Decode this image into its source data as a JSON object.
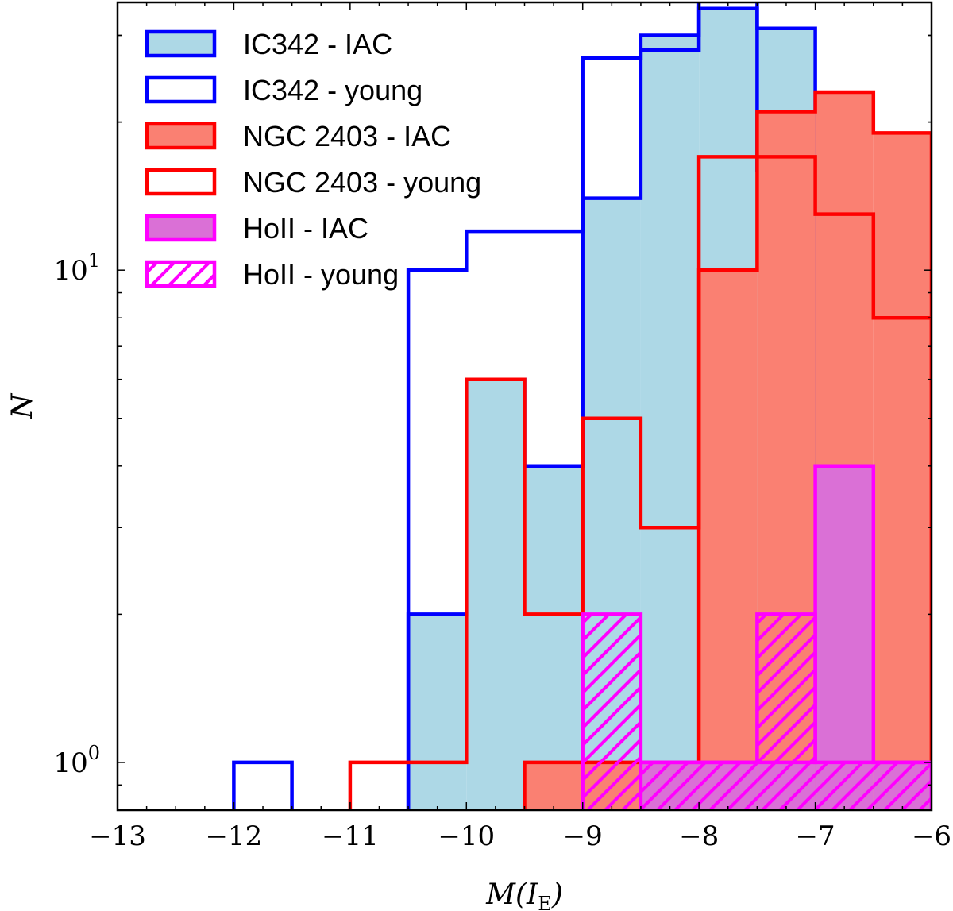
{
  "chart_data": {
    "type": "histogram",
    "xlabel": "M(I_E)",
    "ylabel": "N",
    "xlim": [
      -13,
      -6
    ],
    "ylim": [
      0.8,
      35
    ],
    "yscale": "log",
    "x_ticks": [
      -13,
      -12,
      -11,
      -10,
      -9,
      -8,
      -7,
      -6
    ],
    "x_tick_labels": [
      "−13",
      "−12",
      "−11",
      "−10",
      "−9",
      "−8",
      "−7",
      "−6"
    ],
    "y_tick_labels": [
      {
        "base": "10",
        "exp": "0"
      },
      {
        "base": "10",
        "exp": "1"
      }
    ],
    "legend_position": "top-left",
    "series": [
      {
        "name": "IC342 - IAC",
        "style": "filled",
        "fill": "#add8e6",
        "stroke": "#0000ff",
        "bins": [
          [
            -10.5,
            -10,
            2
          ],
          [
            -10,
            -9.5,
            6
          ],
          [
            -9.5,
            -9,
            4
          ],
          [
            -9,
            -8.5,
            14
          ],
          [
            -8.5,
            -8,
            30
          ],
          [
            -8,
            -7.5,
            34
          ],
          [
            -7.5,
            -7,
            31
          ]
        ]
      },
      {
        "name": "IC342 - young",
        "style": "step",
        "fill": "none",
        "stroke": "#0000ff",
        "bins": [
          [
            -12,
            -11.5,
            1
          ],
          [
            -10.5,
            -10,
            10
          ],
          [
            -10,
            -9.5,
            12
          ],
          [
            -9.5,
            -9,
            12
          ],
          [
            -9,
            -8.5,
            27
          ],
          [
            -8.5,
            -8,
            28
          ],
          [
            -8,
            -7.5,
            39
          ],
          [
            -7.5,
            -7,
            16
          ]
        ]
      },
      {
        "name": "NGC 2403 - IAC",
        "style": "filled",
        "fill": "#fa8072",
        "stroke": "#ff0000",
        "bins": [
          [
            -9.5,
            -9,
            1
          ],
          [
            -9,
            -8.5,
            1
          ],
          [
            -8.5,
            -8,
            1
          ],
          [
            -8,
            -7.5,
            10
          ],
          [
            -7.5,
            -7,
            21
          ],
          [
            -7,
            -6.5,
            23
          ],
          [
            -6.5,
            -6,
            19
          ]
        ]
      },
      {
        "name": "NGC 2403 - young",
        "style": "step",
        "fill": "none",
        "stroke": "#ff0000",
        "bins": [
          [
            -11,
            -10.5,
            1
          ],
          [
            -10.5,
            -10,
            1
          ],
          [
            -10,
            -9.5,
            6
          ],
          [
            -9.5,
            -9,
            2
          ],
          [
            -9,
            -8.5,
            5
          ],
          [
            -8.5,
            -8,
            3
          ],
          [
            -8,
            -7.5,
            17
          ],
          [
            -7.5,
            -7,
            17
          ],
          [
            -7,
            -6.5,
            13
          ],
          [
            -6.5,
            -6,
            8
          ]
        ]
      },
      {
        "name": "HoII - IAC",
        "style": "filled",
        "fill": "#da70d6",
        "stroke": "#ff00ff",
        "bins": [
          [
            -8.5,
            -8,
            1
          ],
          [
            -8,
            -7.5,
            1
          ],
          [
            -7.5,
            -7,
            1
          ],
          [
            -7,
            -6.5,
            4
          ],
          [
            -6.5,
            -6,
            1
          ]
        ]
      },
      {
        "name": "HoII - young",
        "style": "hatched",
        "fill": "none",
        "stroke": "#ff00ff",
        "bins": [
          [
            -9,
            -8.5,
            2
          ],
          [
            -8.5,
            -8,
            1
          ],
          [
            -8,
            -7.5,
            1
          ],
          [
            -7.5,
            -7,
            2
          ],
          [
            -7,
            -6.5,
            1
          ],
          [
            -6.5,
            -6,
            1
          ]
        ]
      }
    ]
  }
}
